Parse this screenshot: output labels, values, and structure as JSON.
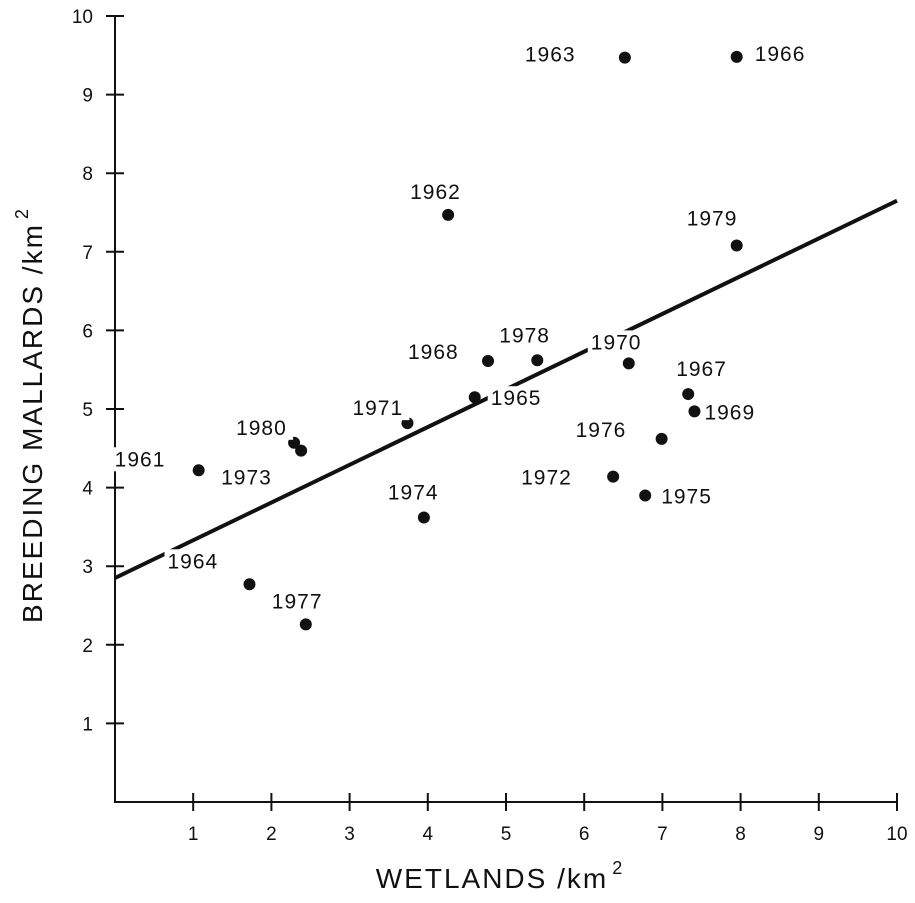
{
  "chart_data": {
    "type": "scatter",
    "title": "",
    "xlabel": "WETLANDS /km",
    "xlabel_sup": "2",
    "ylabel": "BREEDING MALLARDS /km",
    "ylabel_sup": "2",
    "xlim": [
      0,
      10
    ],
    "ylim": [
      0,
      10
    ],
    "xticks": [
      1,
      2,
      3,
      4,
      5,
      6,
      7,
      8,
      9,
      10
    ],
    "yticks": [
      1,
      2,
      3,
      4,
      5,
      6,
      7,
      8,
      9,
      10
    ],
    "grid": false,
    "legend": "none",
    "marker_color": "#111111",
    "points": [
      {
        "label": "1961",
        "x": 1.07,
        "y": 4.22
      },
      {
        "label": "1962",
        "x": 4.26,
        "y": 7.47
      },
      {
        "label": "1963",
        "x": 6.52,
        "y": 9.47
      },
      {
        "label": "1964",
        "x": 1.72,
        "y": 2.77
      },
      {
        "label": "1965",
        "x": 4.6,
        "y": 5.15
      },
      {
        "label": "1966",
        "x": 7.95,
        "y": 9.48
      },
      {
        "label": "1967",
        "x": 7.33,
        "y": 5.19
      },
      {
        "label": "1968",
        "x": 4.77,
        "y": 5.61
      },
      {
        "label": "1969",
        "x": 7.41,
        "y": 4.97
      },
      {
        "label": "1970",
        "x": 6.57,
        "y": 5.58
      },
      {
        "label": "1971",
        "x": 3.74,
        "y": 4.82
      },
      {
        "label": "1972",
        "x": 6.37,
        "y": 4.14
      },
      {
        "label": "1973",
        "x": 2.38,
        "y": 4.47
      },
      {
        "label": "1974",
        "x": 3.95,
        "y": 3.62
      },
      {
        "label": "1975",
        "x": 6.78,
        "y": 3.9
      },
      {
        "label": "1976",
        "x": 6.99,
        "y": 4.62
      },
      {
        "label": "1977",
        "x": 2.44,
        "y": 2.26
      },
      {
        "label": "1978",
        "x": 5.4,
        "y": 5.62
      },
      {
        "label": "1979",
        "x": 7.95,
        "y": 7.08
      },
      {
        "label": "1980",
        "x": 2.29,
        "y": 4.57
      }
    ],
    "regression_line": {
      "x": [
        0,
        10
      ],
      "y": [
        2.85,
        7.65
      ]
    }
  }
}
